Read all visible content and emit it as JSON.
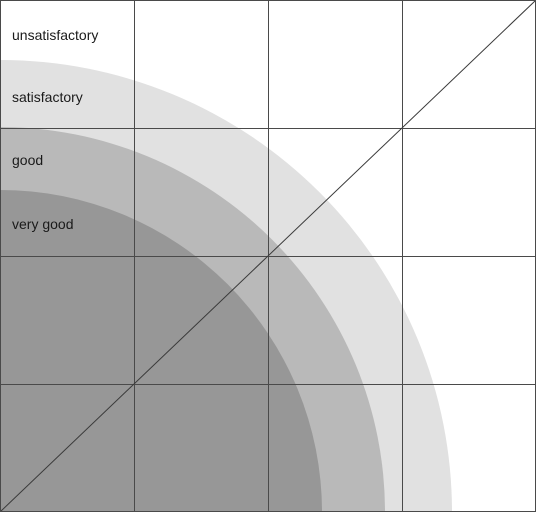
{
  "zones": [
    {
      "label": "unsatisfactory",
      "fill": "#ffffff"
    },
    {
      "label": "satisfactory",
      "fill": "#e1e1e1"
    },
    {
      "label": "good",
      "fill": "#b9b9b9"
    },
    {
      "label": "very good",
      "fill": "#979797"
    }
  ],
  "colors": {
    "grid": "#4a4a4a",
    "diagonal": "#3a3a3a",
    "background": "#ffffff"
  }
}
